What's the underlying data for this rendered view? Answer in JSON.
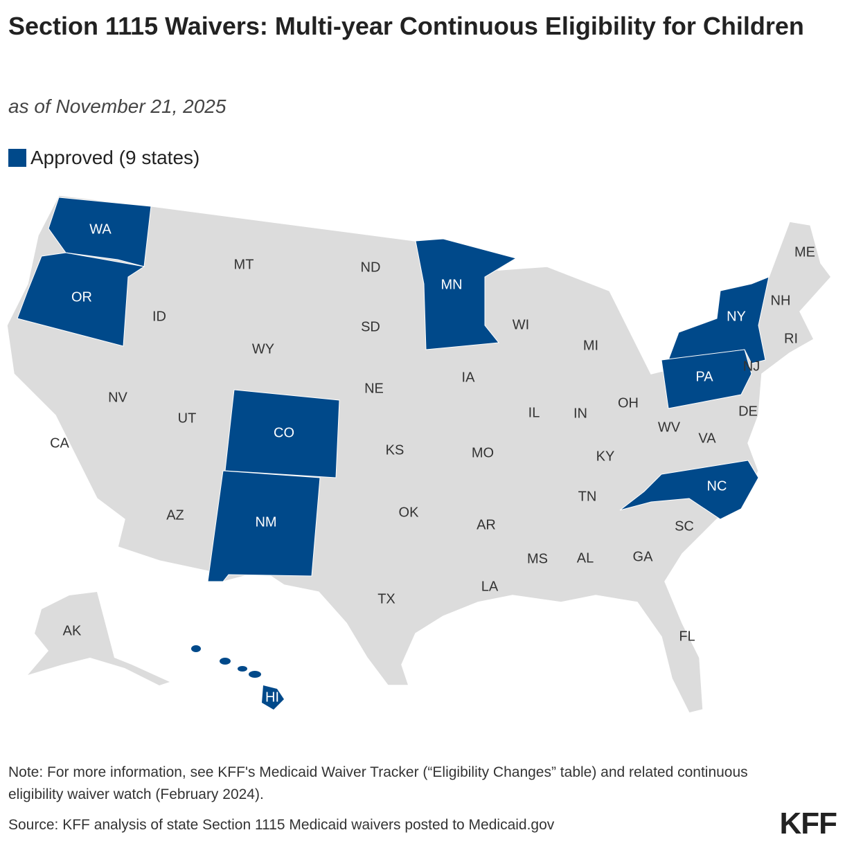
{
  "title": "Section 1115 Waivers: Multi-year Continuous Eligibility for Children",
  "subtitle": "as of November 21, 2025",
  "legend": {
    "label": "Approved (9 states)",
    "color": "#00498a"
  },
  "other_color": "#dcdcdc",
  "states": [
    {
      "label": "WA",
      "approved": true
    },
    {
      "label": "OR",
      "approved": true
    },
    {
      "label": "ID",
      "approved": false
    },
    {
      "label": "MT",
      "approved": false
    },
    {
      "label": "ND",
      "approved": false
    },
    {
      "label": "MN",
      "approved": true
    },
    {
      "label": "WI",
      "approved": false
    },
    {
      "label": "MI",
      "approved": false
    },
    {
      "label": "ME",
      "approved": false
    },
    {
      "label": "NH",
      "approved": false
    },
    {
      "label": "NY",
      "approved": true
    },
    {
      "label": "RI",
      "approved": false
    },
    {
      "label": "NJ",
      "approved": false
    },
    {
      "label": "PA",
      "approved": true
    },
    {
      "label": "SD",
      "approved": false
    },
    {
      "label": "WY",
      "approved": false
    },
    {
      "label": "NV",
      "approved": false
    },
    {
      "label": "UT",
      "approved": false
    },
    {
      "label": "CA",
      "approved": false
    },
    {
      "label": "CO",
      "approved": true
    },
    {
      "label": "NE",
      "approved": false
    },
    {
      "label": "IA",
      "approved": false
    },
    {
      "label": "IL",
      "approved": false
    },
    {
      "label": "IN",
      "approved": false
    },
    {
      "label": "OH",
      "approved": false
    },
    {
      "label": "KS",
      "approved": false
    },
    {
      "label": "MO",
      "approved": false
    },
    {
      "label": "KY",
      "approved": false
    },
    {
      "label": "WV",
      "approved": false
    },
    {
      "label": "VA",
      "approved": false
    },
    {
      "label": "DE",
      "approved": false
    },
    {
      "label": "NC",
      "approved": true
    },
    {
      "label": "TN",
      "approved": false
    },
    {
      "label": "OK",
      "approved": false
    },
    {
      "label": "AR",
      "approved": false
    },
    {
      "label": "AZ",
      "approved": false
    },
    {
      "label": "NM",
      "approved": true
    },
    {
      "label": "SC",
      "approved": false
    },
    {
      "label": "GA",
      "approved": false
    },
    {
      "label": "AL",
      "approved": false
    },
    {
      "label": "MS",
      "approved": false
    },
    {
      "label": "LA",
      "approved": false
    },
    {
      "label": "TX",
      "approved": false
    },
    {
      "label": "FL",
      "approved": false
    },
    {
      "label": "AK",
      "approved": false
    },
    {
      "label": "HI",
      "approved": true
    }
  ],
  "note": "Note: For more information, see KFF's Medicaid Waiver Tracker (“Eligibility Changes” table) and related continuous eligibility waiver watch (February 2024).",
  "source": "Source: KFF analysis of state Section 1115 Medicaid waivers posted to Medicaid.gov",
  "logo": "KFF"
}
